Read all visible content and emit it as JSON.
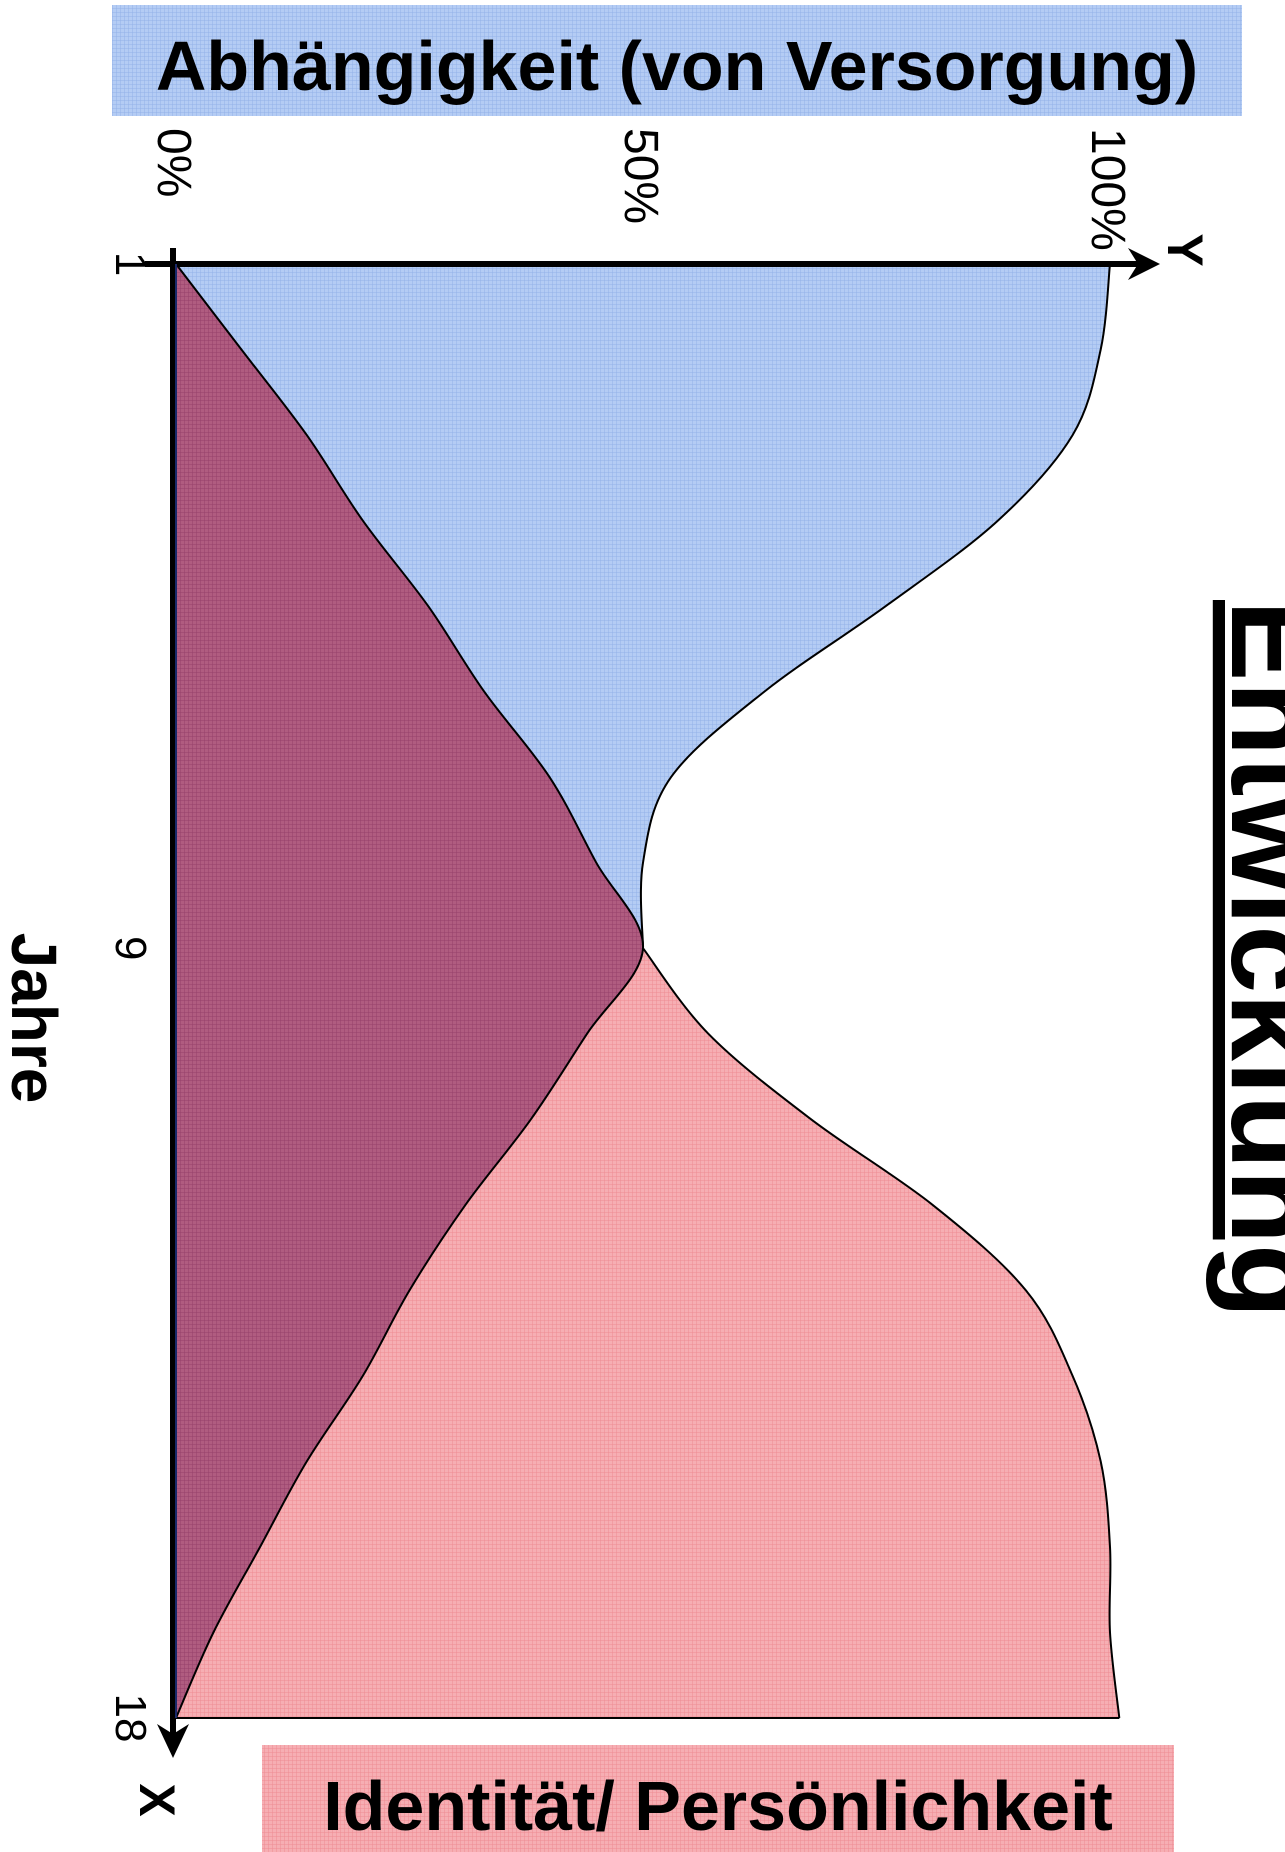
{
  "chart_data": {
    "type": "area",
    "title": "Entwicklung",
    "xlabel": "Jahre",
    "x_axis_letter": "X",
    "y_axis_letter": "Y",
    "x_ticks": [
      "1",
      "9",
      "18"
    ],
    "y_ticks": [
      "0%",
      "50%",
      "100%"
    ],
    "xlim": [
      1,
      18
    ],
    "ylim": [
      0,
      100
    ],
    "series": [
      {
        "name": "Abhängigkeit (von Versorgung)",
        "color": "#a9c3f0",
        "x": [
          1,
          2,
          3,
          4,
          5,
          6,
          7,
          8,
          9
        ],
        "y": [
          100,
          99,
          96,
          88,
          76,
          63,
          53,
          50,
          50
        ]
      },
      {
        "name": "Identität/ Persönlichkeit",
        "color": "#f3a0a6",
        "x": [
          9,
          10,
          11,
          12,
          13,
          14,
          15,
          16,
          17,
          18
        ],
        "y": [
          50,
          57,
          68,
          81,
          91,
          96,
          99,
          100,
          100,
          101
        ]
      },
      {
        "name": "",
        "color": "#a2486f",
        "x": [
          1,
          2,
          3,
          4,
          5,
          6,
          7,
          8,
          9,
          10,
          11,
          12,
          13,
          14,
          15,
          16,
          17,
          18
        ],
        "y": [
          0,
          7,
          14,
          20,
          27,
          33,
          40,
          45,
          50,
          44,
          38,
          31,
          25,
          20,
          14,
          9,
          4,
          0
        ]
      }
    ]
  }
}
